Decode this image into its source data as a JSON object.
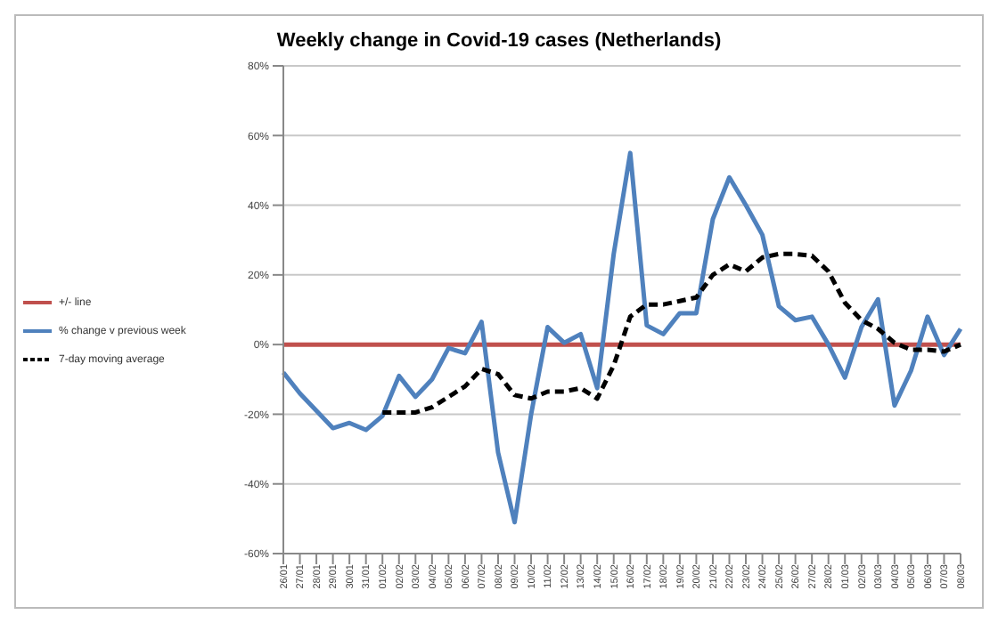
{
  "chart_data": {
    "type": "line",
    "title": "Weekly change in Covid-19 cases (Netherlands)",
    "categories": [
      "26/01",
      "27/01",
      "28/01",
      "29/01",
      "30/01",
      "31/01",
      "01/02",
      "02/02",
      "03/02",
      "04/02",
      "05/02",
      "06/02",
      "07/02",
      "08/02",
      "09/02",
      "10/02",
      "11/02",
      "12/02",
      "13/02",
      "14/02",
      "15/02",
      "16/02",
      "17/02",
      "18/02",
      "19/02",
      "20/02",
      "21/02",
      "22/02",
      "23/02",
      "24/02",
      "25/02",
      "26/02",
      "27/02",
      "28/02",
      "01/03",
      "02/03",
      "03/03",
      "04/03",
      "05/03",
      "06/03",
      "07/03",
      "08/03"
    ],
    "series": [
      {
        "name": "+/- line",
        "color": "#c0504d",
        "line_style": "solid",
        "values": [
          0,
          0,
          0,
          0,
          0,
          0,
          0,
          0,
          0,
          0,
          0,
          0,
          0,
          0,
          0,
          0,
          0,
          0,
          0,
          0,
          0,
          0,
          0,
          0,
          0,
          0,
          0,
          0,
          0,
          0,
          0,
          0,
          0,
          0,
          0,
          0,
          0,
          0,
          0,
          0,
          0,
          0
        ]
      },
      {
        "name": "% change v previous week",
        "color": "#4f81bd",
        "line_style": "solid",
        "values": [
          -8,
          -14,
          -19,
          -24,
          -22.5,
          -24.5,
          -20.5,
          -9,
          -15,
          -10,
          -1,
          -2.5,
          6.5,
          -31,
          -51,
          -20,
          5,
          0.5,
          3,
          -12.5,
          26,
          55,
          5.5,
          3,
          9,
          9,
          36,
          48,
          40,
          31.5,
          11,
          7,
          8,
          0,
          -9.5,
          5,
          13,
          -17.5,
          -7.5,
          8,
          -3,
          4.5
        ]
      },
      {
        "name": "7-day moving average",
        "color": "#000000",
        "line_style": "dashed",
        "values": [
          null,
          null,
          null,
          null,
          null,
          null,
          -19.5,
          -19.5,
          -19.5,
          -18,
          -15,
          -12,
          -7,
          -8.5,
          -14.5,
          -15.5,
          -13.5,
          -13.5,
          -12.5,
          -15.5,
          -6,
          8,
          11.5,
          11.5,
          12.5,
          13.5,
          20,
          23,
          21,
          25,
          26,
          26,
          25.5,
          21,
          12,
          7,
          4.5,
          0.5,
          -1.5,
          -1.5,
          -2,
          0
        ]
      }
    ],
    "ylim": [
      -60,
      80
    ],
    "yticks": [
      {
        "value": -60,
        "label": "-60%"
      },
      {
        "value": -40,
        "label": "-40%"
      },
      {
        "value": -20,
        "label": "-20%"
      },
      {
        "value": 0,
        "label": "0%"
      },
      {
        "value": 20,
        "label": "20%"
      },
      {
        "value": 40,
        "label": "40%"
      },
      {
        "value": 60,
        "label": "60%"
      },
      {
        "value": 80,
        "label": "80%"
      }
    ],
    "grid": "y",
    "legend": "left",
    "marker": "none"
  }
}
